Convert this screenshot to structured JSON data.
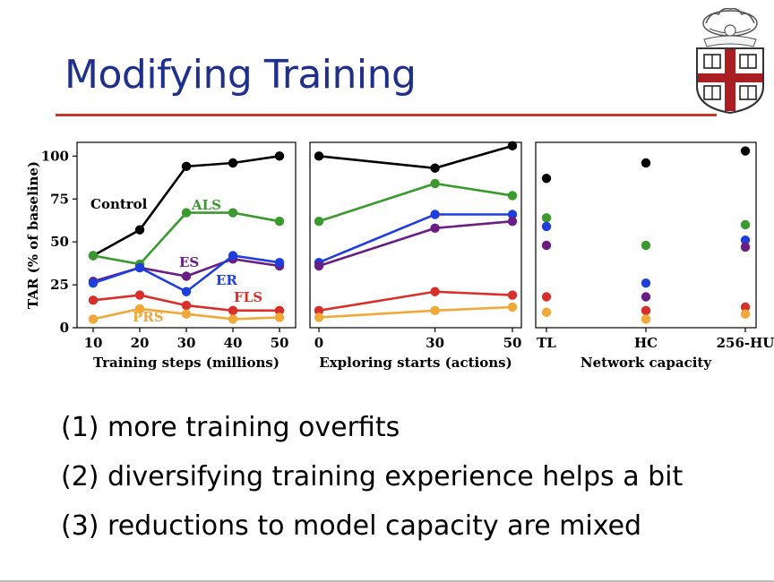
{
  "title": "Modifying Training",
  "colors": {
    "title": "#1f2f8c",
    "rule": "#c23a2b",
    "Control": "#000000",
    "ALS": "#3a9a2e",
    "ES": "#6a1e84",
    "ER": "#1f3fdc",
    "FLS": "#d7302b",
    "PRS": "#f0a838"
  },
  "crest_icon": "shield-crest-icon",
  "chart_data": [
    {
      "type": "line",
      "ylabel": "TAR (% of baseline)",
      "xlabel": "Training steps (millions)",
      "x": [
        10,
        20,
        30,
        40,
        50
      ],
      "xticks": [
        "10",
        "20",
        "30",
        "40",
        "50"
      ],
      "yticks": [
        "0",
        "25",
        "50",
        "75",
        "100"
      ],
      "ylim": [
        0,
        108
      ],
      "series": [
        {
          "name": "Control",
          "color_key": "Control",
          "values": [
            42,
            57,
            94,
            96,
            100
          ]
        },
        {
          "name": "ALS",
          "color_key": "ALS",
          "values": [
            42,
            37,
            67,
            67,
            62
          ]
        },
        {
          "name": "ES",
          "color_key": "ES",
          "values": [
            27,
            35,
            30,
            40,
            36
          ]
        },
        {
          "name": "ER",
          "color_key": "ER",
          "values": [
            26,
            35,
            21,
            42,
            38
          ]
        },
        {
          "name": "FLS",
          "color_key": "FLS",
          "values": [
            16,
            19,
            13,
            10,
            10
          ]
        },
        {
          "name": "PRS",
          "color_key": "PRS",
          "values": [
            5,
            11,
            8,
            5,
            6
          ]
        }
      ]
    },
    {
      "type": "line",
      "xlabel": "Exploring starts (actions)",
      "x": [
        0,
        30,
        50
      ],
      "xticks": [
        "0",
        "30",
        "50"
      ],
      "ylim": [
        0,
        108
      ],
      "series": [
        {
          "color_key": "Control",
          "values": [
            100,
            93,
            106
          ]
        },
        {
          "color_key": "ALS",
          "values": [
            62,
            84,
            77
          ]
        },
        {
          "color_key": "ER",
          "values": [
            38,
            66,
            66
          ]
        },
        {
          "color_key": "ES",
          "values": [
            36,
            58,
            62
          ]
        },
        {
          "color_key": "FLS",
          "values": [
            10,
            21,
            19
          ]
        },
        {
          "color_key": "PRS",
          "values": [
            6,
            10,
            12
          ]
        }
      ]
    },
    {
      "type": "scatter",
      "xlabel": "Network capacity",
      "categories": [
        "TL",
        "HC",
        "256-HU"
      ],
      "xticks": [
        "TL",
        "HC",
        "256-HU"
      ],
      "ylim": [
        0,
        108
      ],
      "series": [
        {
          "color_key": "Control",
          "values": [
            87,
            96,
            103
          ]
        },
        {
          "color_key": "ALS",
          "values": [
            64,
            48,
            60
          ]
        },
        {
          "color_key": "ER",
          "values": [
            59,
            26,
            51
          ]
        },
        {
          "color_key": "ES",
          "values": [
            48,
            18,
            47
          ]
        },
        {
          "color_key": "FLS",
          "values": [
            18,
            10,
            12
          ]
        },
        {
          "color_key": "PRS",
          "values": [
            9,
            5,
            8
          ]
        }
      ]
    }
  ],
  "bullets": [
    "(1) more training overfits",
    "(2) diversifying training experience helps a bit",
    "(3) reductions to model capacity are mixed"
  ]
}
